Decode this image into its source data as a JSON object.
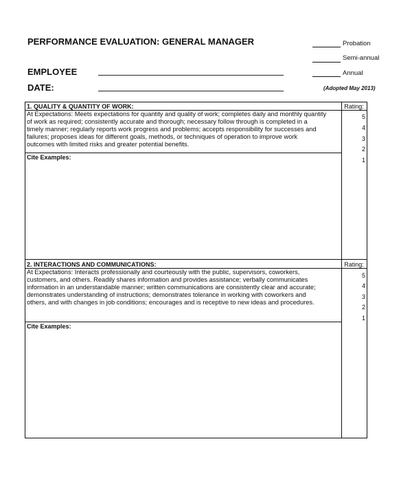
{
  "header": {
    "title": "PERFORMANCE EVALUATION: GENERAL MANAGER",
    "employee_label": "EMPLOYEE",
    "date_label": "DATE:",
    "review_types": [
      "Probation",
      "Semi-annual",
      "Annual"
    ],
    "adopted": "(Adopted May 2013)"
  },
  "sections": [
    {
      "heading": "1. QUALITY & QUANTITY OF WORK:",
      "rating_label": "Rating:",
      "description_lines": [
        "At Expectations: Meets expectations for quantity and quality of work; completes daily and monthly quantity",
        "of work as required; consistently accurate and thorough; necessary follow through is completed in a",
        "timely manner; regularly reports work progress and problems; accepts responsibility for successes and",
        "failures; proposes ideas for different goals, methods, or techniques of operation to improve work",
        "outcomes with limited risks and greater potential benefits."
      ],
      "ratings": [
        "5",
        "4",
        "3",
        "2",
        "1"
      ],
      "cite_label": "Cite Examples:"
    },
    {
      "heading": "2. INTERACTIONS AND COMMUNICATIONS:",
      "rating_label": "Rating:",
      "description_lines": [
        "At Expectations:  Interacts professionally and courteously with the public, supervisors, coworkers,",
        "customers, and others. Readily shares information and provides assistance; verbally communicates",
        "information in an understandable manner; written communications are consistently clear and accurate;",
        "demonstrates understanding of instructions; demonstrates tolerance in working with coworkers and",
        "others, and with changes in job conditions; encourages and is receptive to new ideas and procedures."
      ],
      "ratings": [
        "5",
        "4",
        "3",
        "2",
        "1"
      ],
      "cite_label": "Cite Examples:"
    }
  ]
}
